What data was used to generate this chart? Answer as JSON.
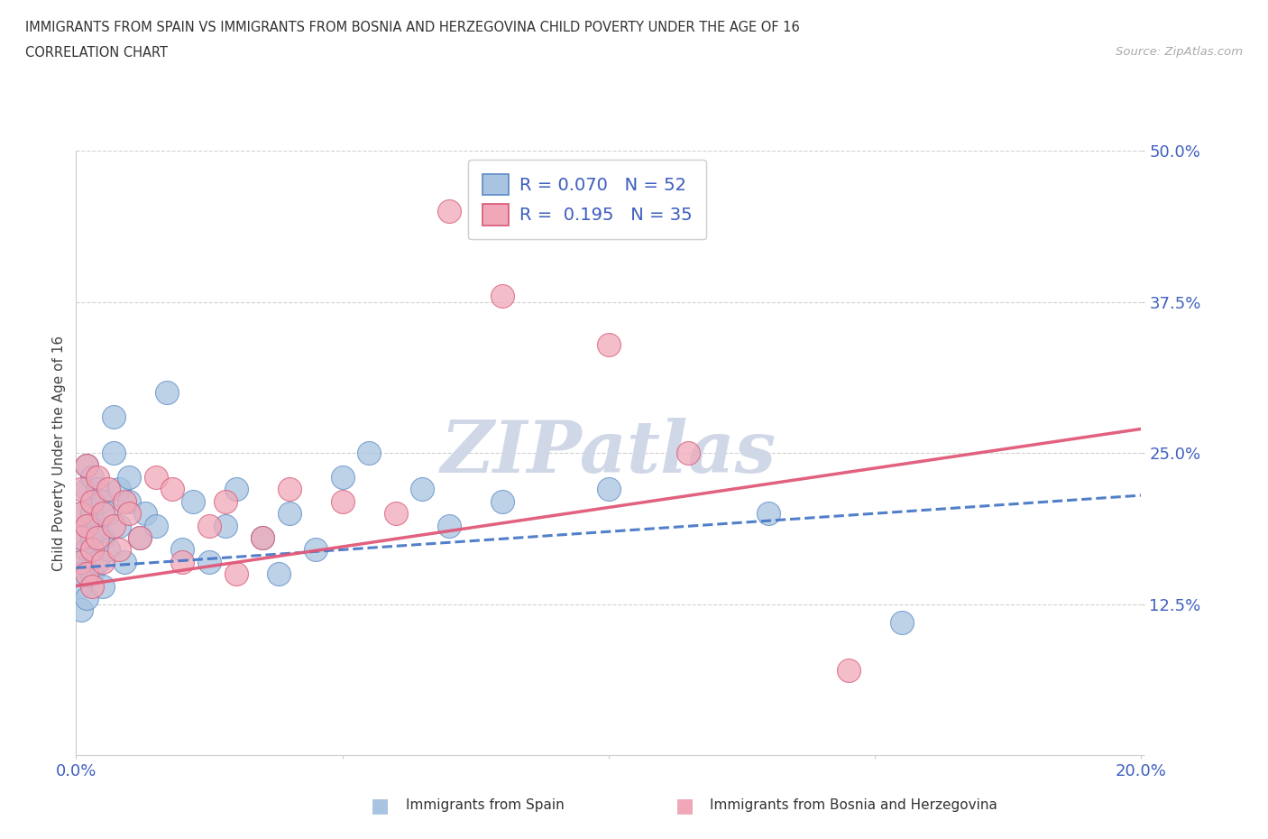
{
  "title_line1": "IMMIGRANTS FROM SPAIN VS IMMIGRANTS FROM BOSNIA AND HERZEGOVINA CHILD POVERTY UNDER THE AGE OF 16",
  "title_line2": "CORRELATION CHART",
  "source_text": "Source: ZipAtlas.com",
  "ylabel": "Child Poverty Under the Age of 16",
  "xlim": [
    0.0,
    0.2
  ],
  "ylim": [
    0.0,
    0.5
  ],
  "spain_color": "#a8c4e0",
  "spain_edge_color": "#5b8cc8",
  "bosnia_color": "#f0a8b8",
  "bosnia_edge_color": "#d85878",
  "spain_trend_color": "#4878c8",
  "bosnia_trend_color": "#e05878",
  "spain_label": "Immigrants from Spain",
  "bosnia_label": "Immigrants from Bosnia and Herzegovina",
  "R_spain": 0.07,
  "N_spain": 52,
  "R_bosnia": 0.195,
  "N_bosnia": 35,
  "background_color": "#ffffff",
  "grid_color": "#cccccc",
  "watermark_color": "#d0d8e8",
  "tick_label_color": "#4060c0",
  "spain_x": [
    0.001,
    0.001,
    0.001,
    0.001,
    0.001,
    0.001,
    0.002,
    0.002,
    0.002,
    0.002,
    0.002,
    0.003,
    0.003,
    0.003,
    0.003,
    0.003,
    0.004,
    0.004,
    0.004,
    0.005,
    0.005,
    0.005,
    0.006,
    0.006,
    0.007,
    0.007,
    0.008,
    0.008,
    0.009,
    0.01,
    0.01,
    0.012,
    0.013,
    0.015,
    0.017,
    0.02,
    0.022,
    0.025,
    0.028,
    0.03,
    0.035,
    0.038,
    0.04,
    0.045,
    0.05,
    0.055,
    0.065,
    0.07,
    0.08,
    0.1,
    0.13,
    0.155
  ],
  "spain_y": [
    0.18,
    0.16,
    0.14,
    0.2,
    0.12,
    0.15,
    0.22,
    0.17,
    0.13,
    0.19,
    0.24,
    0.2,
    0.18,
    0.15,
    0.17,
    0.23,
    0.16,
    0.19,
    0.22,
    0.14,
    0.18,
    0.21,
    0.2,
    0.17,
    0.25,
    0.28,
    0.19,
    0.22,
    0.16,
    0.21,
    0.23,
    0.18,
    0.2,
    0.19,
    0.3,
    0.17,
    0.21,
    0.16,
    0.19,
    0.22,
    0.18,
    0.15,
    0.2,
    0.17,
    0.23,
    0.25,
    0.22,
    0.19,
    0.21,
    0.22,
    0.2,
    0.11
  ],
  "bosnia_x": [
    0.001,
    0.001,
    0.001,
    0.001,
    0.002,
    0.002,
    0.002,
    0.003,
    0.003,
    0.003,
    0.004,
    0.004,
    0.005,
    0.005,
    0.006,
    0.007,
    0.008,
    0.009,
    0.01,
    0.012,
    0.015,
    0.018,
    0.02,
    0.025,
    0.028,
    0.03,
    0.035,
    0.04,
    0.05,
    0.06,
    0.07,
    0.08,
    0.1,
    0.115,
    0.145
  ],
  "bosnia_y": [
    0.22,
    0.18,
    0.16,
    0.2,
    0.24,
    0.19,
    0.15,
    0.21,
    0.17,
    0.14,
    0.23,
    0.18,
    0.2,
    0.16,
    0.22,
    0.19,
    0.17,
    0.21,
    0.2,
    0.18,
    0.23,
    0.22,
    0.16,
    0.19,
    0.21,
    0.15,
    0.18,
    0.22,
    0.21,
    0.2,
    0.45,
    0.38,
    0.34,
    0.25,
    0.07
  ],
  "spain_trend_x": [
    0.0,
    0.2
  ],
  "spain_trend_y": [
    0.155,
    0.215
  ],
  "bosnia_trend_x": [
    0.0,
    0.2
  ],
  "bosnia_trend_y": [
    0.14,
    0.27
  ]
}
